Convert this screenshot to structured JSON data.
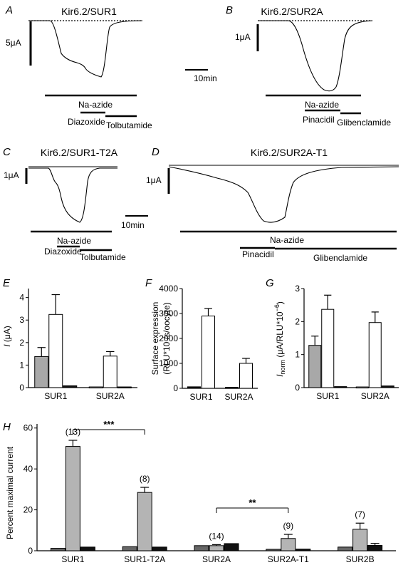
{
  "panels": {
    "A": {
      "letter": "A",
      "title": "Kir6.2/SUR1",
      "scale_label": "5μA",
      "time_scale": "10min",
      "bars": [
        "Na-azide",
        "Diazoxide",
        "Tolbutamide"
      ]
    },
    "B": {
      "letter": "B",
      "title": "Kir6.2/SUR2A",
      "scale_label": "1μA",
      "bars": [
        "Na-azide",
        "Pinacidil",
        "Glibenclamide"
      ]
    },
    "C": {
      "letter": "C",
      "title": "Kir6.2/SUR1-T2A",
      "scale_label": "1μA",
      "time_scale": "10min",
      "bars": [
        "Na-azide",
        "Diazoxide",
        "Tolbutamide"
      ]
    },
    "D": {
      "letter": "D",
      "title": "Kir6.2/SUR2A-T1",
      "scale_label": "1μA",
      "bars": [
        "Na-azide",
        "Pinacidil",
        "Glibenclamide"
      ]
    }
  },
  "chart_data": [
    {
      "panel": "E",
      "type": "bar",
      "categories": [
        "SUR1",
        "SUR2A"
      ],
      "ylabel": "I (μA)",
      "ylim": [
        0,
        4.4
      ],
      "yticks": [
        "0",
        "1",
        "2",
        "3",
        "4"
      ],
      "colors": [
        "#a8a8a8",
        "#ffffff",
        "#111111"
      ],
      "series": [
        {
          "values": [
            1.38,
            0.03
          ],
          "err": [
            0.4,
            0
          ]
        },
        {
          "values": [
            3.25,
            1.4
          ],
          "err": [
            0.88,
            0.2
          ]
        },
        {
          "values": [
            0.08,
            0.03
          ],
          "err": [
            0,
            0
          ]
        }
      ]
    },
    {
      "panel": "F",
      "type": "bar",
      "categories": [
        "SUR1",
        "SUR2A"
      ],
      "ylabel": "Surface expression (RLU*10 /s/oocyte)",
      "ylim": [
        0,
        4000
      ],
      "yticks": [
        "0",
        "1000",
        "2000",
        "3000",
        "4000"
      ],
      "colors": [
        "#111111",
        "#ffffff"
      ],
      "series": [
        {
          "values": [
            60,
            40
          ],
          "err": [
            0,
            0
          ]
        },
        {
          "values": [
            2900,
            1000
          ],
          "err": [
            300,
            200
          ]
        }
      ]
    },
    {
      "panel": "G",
      "type": "bar",
      "categories": [
        "SUR1",
        "SUR2A"
      ],
      "ylabel": "Inorm (μA/RLU*10−6)",
      "ylim": [
        0,
        3
      ],
      "yticks": [
        "0",
        "1",
        "2",
        "3"
      ],
      "colors": [
        "#a8a8a8",
        "#ffffff",
        "#111111"
      ],
      "series": [
        {
          "values": [
            1.28,
            0.02
          ],
          "err": [
            0.28,
            0
          ]
        },
        {
          "values": [
            2.37,
            1.97
          ],
          "err": [
            0.43,
            0.32
          ]
        },
        {
          "values": [
            0.03,
            0.05
          ],
          "err": [
            0,
            0
          ]
        }
      ]
    },
    {
      "panel": "H",
      "type": "bar",
      "categories": [
        "SUR1",
        "SUR1-T2A",
        "SUR2A",
        "SUR2A-T1",
        "SUR2B"
      ],
      "ylabel": "Percent maximal current",
      "ylim": [
        0,
        62
      ],
      "yticks": [
        "0",
        "20",
        "40",
        "60"
      ],
      "colors": [
        "#666666",
        "#b4b4b4",
        "#111111"
      ],
      "series": [
        {
          "values": [
            1.2,
            2.0,
            2.5,
            0.7,
            1.8
          ],
          "err": [
            0,
            0,
            0,
            0,
            0
          ]
        },
        {
          "values": [
            51,
            28.5,
            2.5,
            6,
            10.5
          ],
          "err": [
            3,
            2.5,
            0.5,
            2,
            3
          ]
        },
        {
          "values": [
            1.8,
            1.8,
            3.5,
            0.8,
            2.6
          ],
          "err": [
            0,
            0,
            0,
            0,
            1
          ]
        }
      ],
      "n_labels": [
        "(13)",
        "(8)",
        "(14)",
        "(9)",
        "(7)"
      ],
      "significance": [
        {
          "from": "SUR1",
          "to": "SUR1-T2A",
          "label": "***"
        },
        {
          "from": "SUR2A",
          "to": "SUR2A-T1",
          "label": "**"
        }
      ]
    }
  ]
}
